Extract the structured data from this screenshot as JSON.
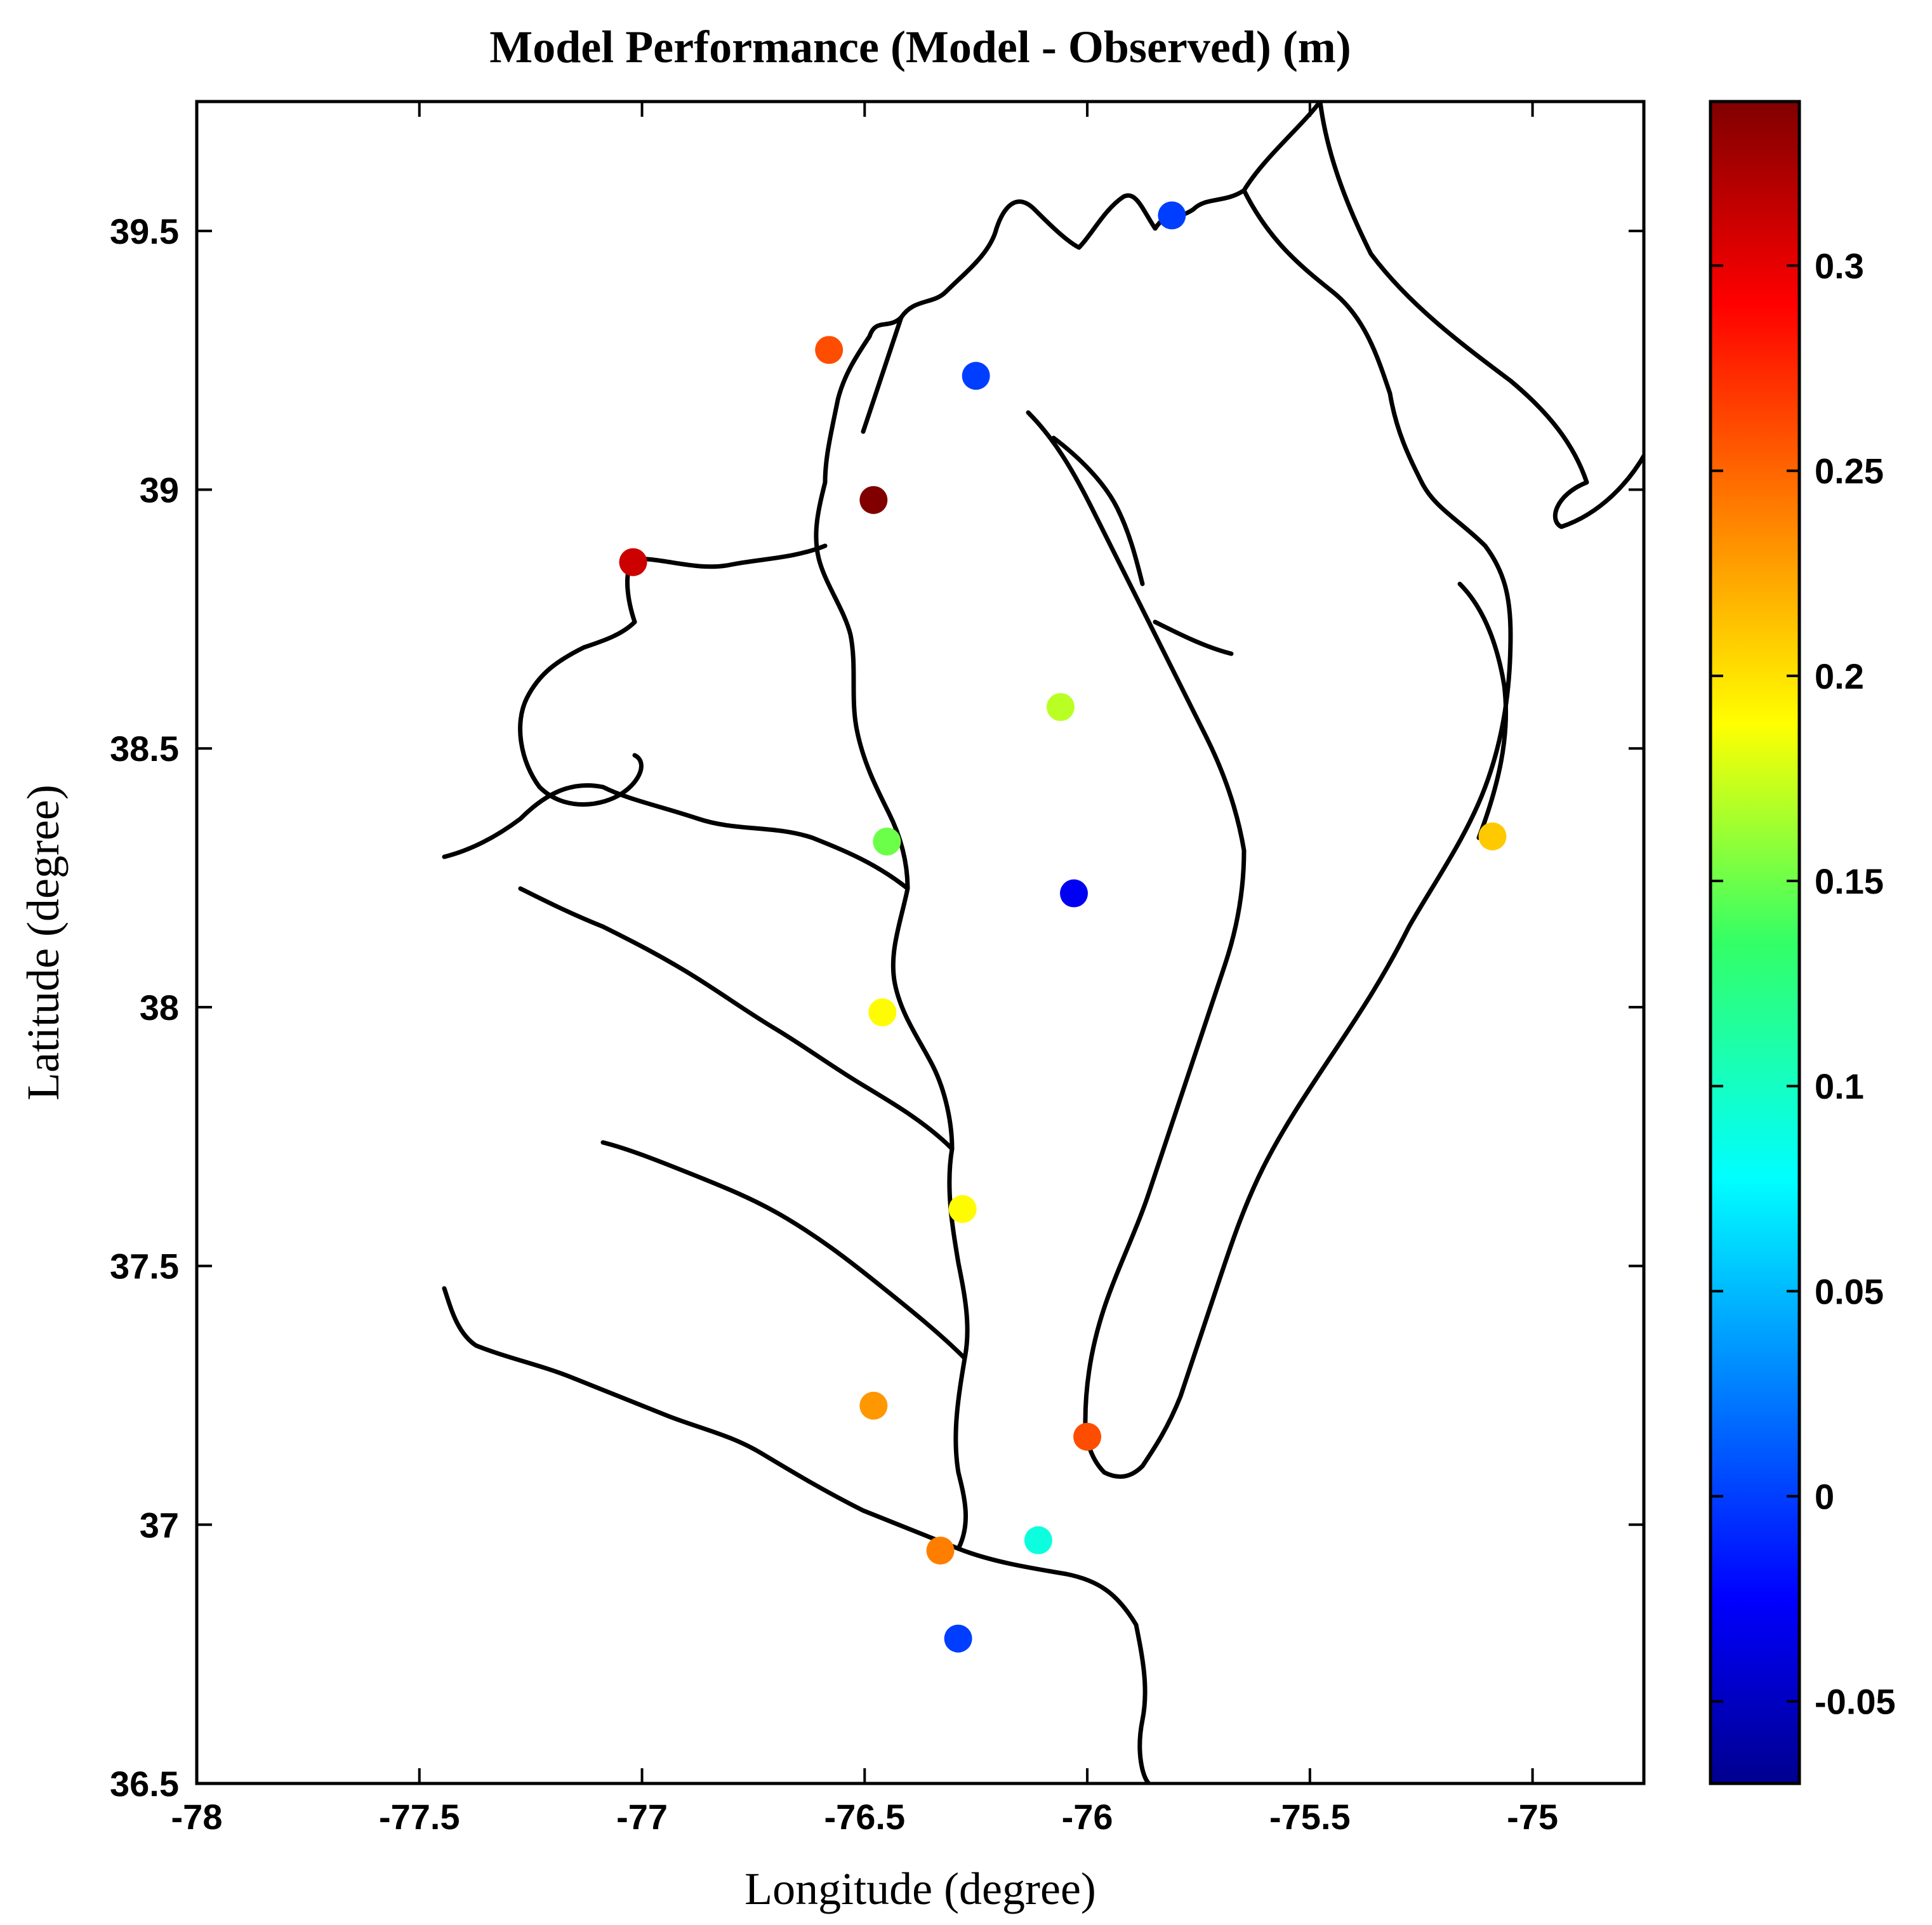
{
  "chart_data": {
    "type": "scatter",
    "title": "Model Performance (Model - Observed) (m)",
    "xlabel": "Longitude (degree)",
    "ylabel": "Latitude (degree)",
    "xlim": [
      -78,
      -74.75
    ],
    "ylim": [
      36.5,
      39.75
    ],
    "xticks": [
      -78,
      -77.5,
      -77,
      -76.5,
      -76,
      -75.5,
      -75
    ],
    "xtick_labels": [
      "-78",
      "-77.5",
      "-77",
      "-76.5",
      "-76",
      "-75.5",
      "-75"
    ],
    "yticks": [
      36.5,
      37,
      37.5,
      38,
      38.5,
      39,
      39.5
    ],
    "ytick_labels": [
      "36.5",
      "37",
      "37.5",
      "38",
      "38.5",
      "39",
      "39.5"
    ],
    "grid": false,
    "colorbar": {
      "colormap": "jet",
      "range": [
        -0.07,
        0.34
      ],
      "ticks": [
        -0.05,
        0,
        0.05,
        0.1,
        0.15,
        0.2,
        0.25,
        0.3
      ],
      "tick_labels": [
        "-0.05",
        "0",
        "0.05",
        "0.1",
        "0.15",
        "0.2",
        "0.25",
        "0.3"
      ]
    },
    "points": [
      {
        "lon": -75.81,
        "lat": 39.53,
        "value": 0.0
      },
      {
        "lon": -76.58,
        "lat": 39.27,
        "value": 0.26
      },
      {
        "lon": -76.25,
        "lat": 39.22,
        "value": 0.0
      },
      {
        "lon": -76.48,
        "lat": 38.98,
        "value": 0.34
      },
      {
        "lon": -77.02,
        "lat": 38.86,
        "value": 0.31
      },
      {
        "lon": -76.06,
        "lat": 38.58,
        "value": 0.17
      },
      {
        "lon": -76.45,
        "lat": 38.32,
        "value": 0.15
      },
      {
        "lon": -75.09,
        "lat": 38.33,
        "value": 0.21
      },
      {
        "lon": -76.03,
        "lat": 38.22,
        "value": -0.03
      },
      {
        "lon": -76.46,
        "lat": 37.99,
        "value": 0.19
      },
      {
        "lon": -76.28,
        "lat": 37.61,
        "value": 0.19
      },
      {
        "lon": -76.48,
        "lat": 37.23,
        "value": 0.23
      },
      {
        "lon": -76.0,
        "lat": 37.17,
        "value": 0.26
      },
      {
        "lon": -76.11,
        "lat": 36.97,
        "value": 0.09
      },
      {
        "lon": -76.33,
        "lat": 36.95,
        "value": 0.24
      },
      {
        "lon": -76.29,
        "lat": 36.78,
        "value": 0.0
      }
    ]
  }
}
